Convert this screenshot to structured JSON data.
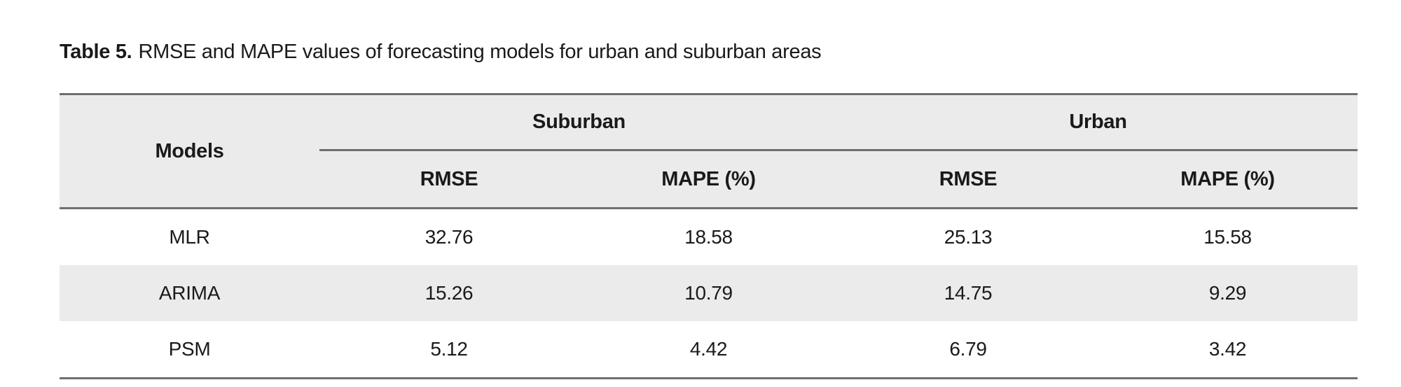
{
  "caption": {
    "label": "Table 5.",
    "text": "RMSE and MAPE values of forecasting models for urban and suburban areas"
  },
  "table": {
    "models_header": "Models",
    "groups": [
      {
        "label": "Suburban"
      },
      {
        "label": "Urban"
      }
    ],
    "sub_headers": [
      "RMSE",
      "MAPE (%)",
      "RMSE",
      "MAPE (%)"
    ],
    "rows": [
      {
        "model": "MLR",
        "values": [
          "32.76",
          "18.58",
          "25.13",
          "15.58"
        ]
      },
      {
        "model": "ARIMA",
        "values": [
          "15.26",
          "10.79",
          "14.75",
          "9.29"
        ]
      },
      {
        "model": "PSM",
        "values": [
          "5.12",
          "4.42",
          "6.79",
          "3.42"
        ]
      }
    ]
  },
  "chart_data": {
    "type": "table",
    "title": "Table 5. RMSE and MAPE values of forecasting models for urban and suburban areas",
    "column_groups": [
      "Suburban",
      "Urban"
    ],
    "columns": [
      "Models",
      "Suburban RMSE",
      "Suburban MAPE (%)",
      "Urban RMSE",
      "Urban MAPE (%)"
    ],
    "rows": [
      [
        "MLR",
        32.76,
        18.58,
        25.13,
        15.58
      ],
      [
        "ARIMA",
        15.26,
        10.79,
        14.75,
        9.29
      ],
      [
        "PSM",
        5.12,
        4.42,
        6.79,
        3.42
      ]
    ]
  },
  "colors": {
    "header_fill": "#ebebeb",
    "stripe_fill": "#ebebeb",
    "line": "#6e6e6e",
    "text": "#1a1a1a"
  }
}
